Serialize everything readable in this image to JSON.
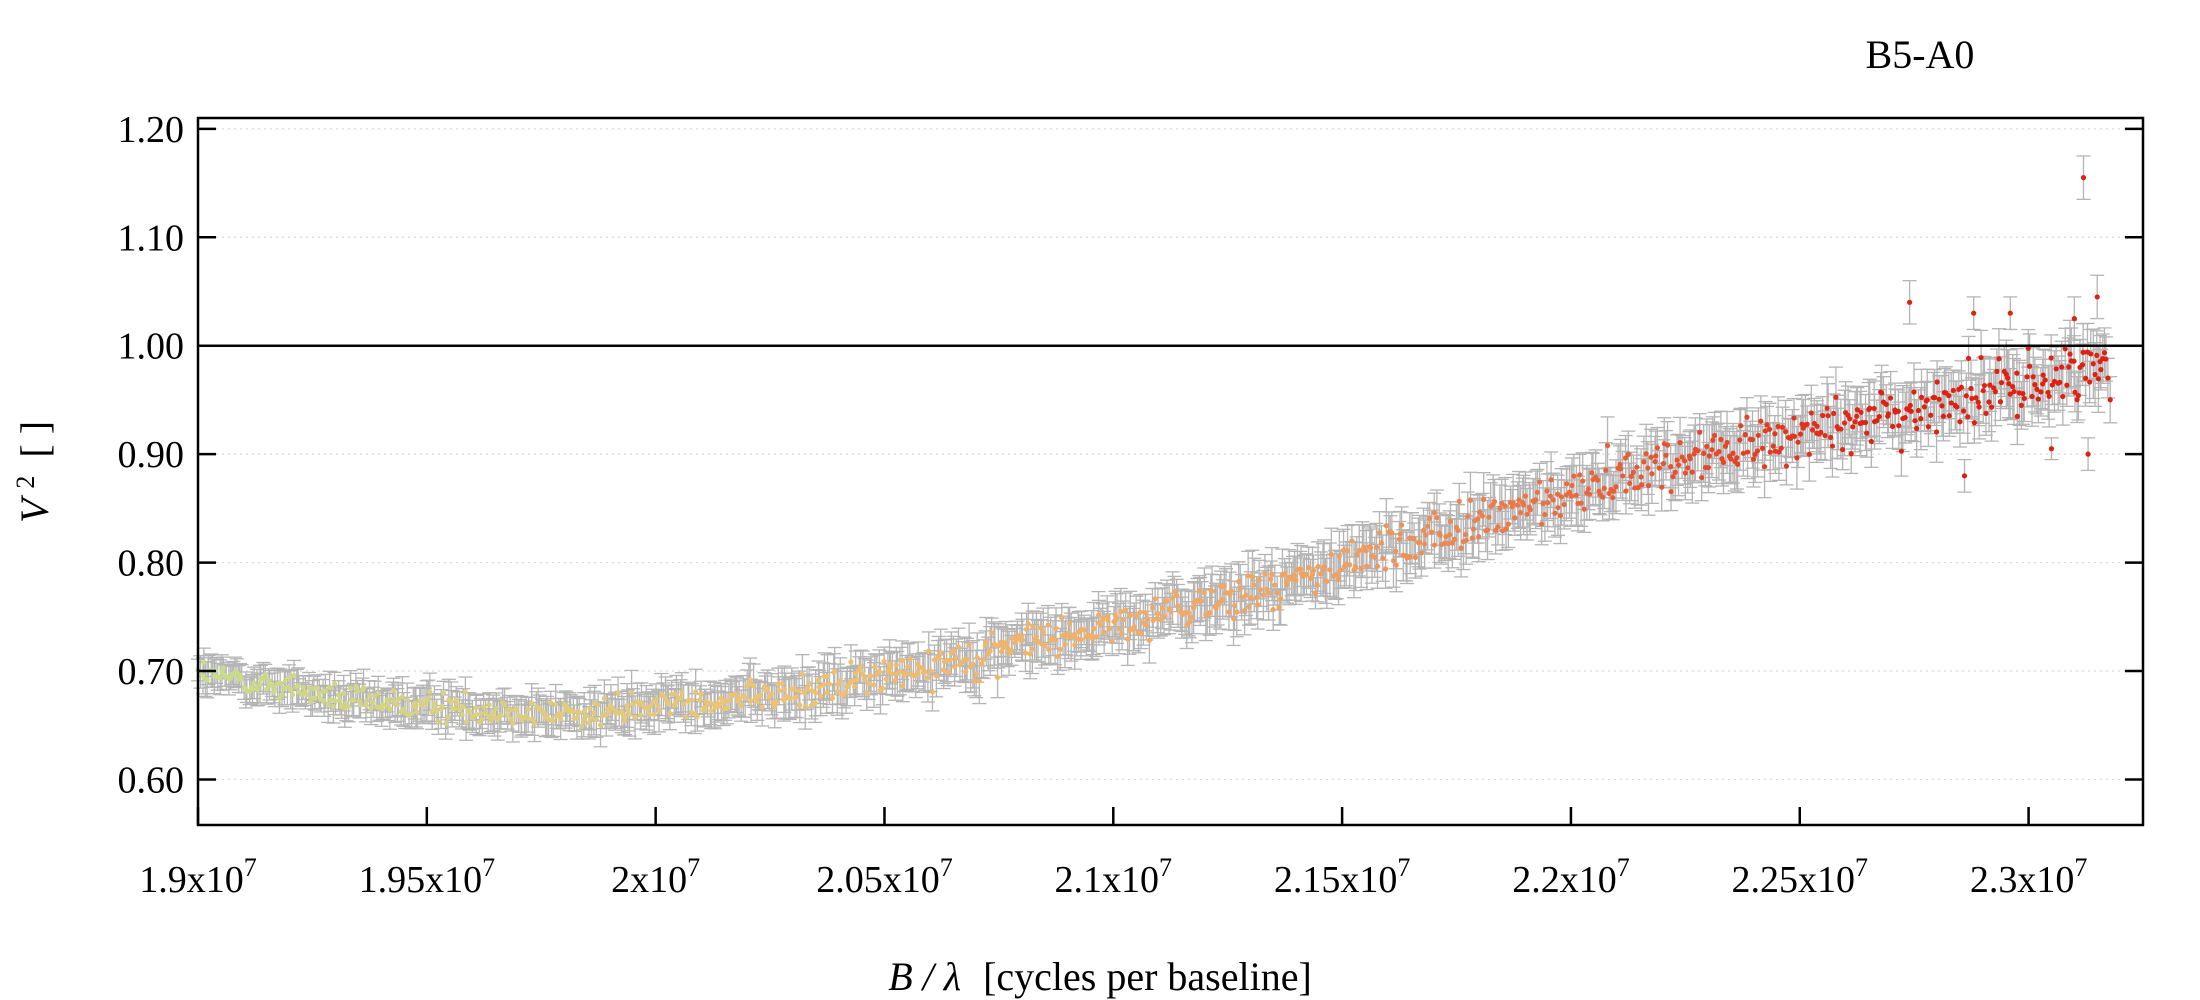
{
  "chart_data": {
    "type": "scatter",
    "title": "B5-A0",
    "xlabel": {
      "var": "B / λ",
      "unit": "[cycles per baseline]"
    },
    "ylabel": {
      "var": "V",
      "sup": "2",
      "unit": "[ ]"
    },
    "xlim": [
      19000000,
      23250000
    ],
    "ylim": [
      0.558,
      1.21
    ],
    "x_ticks": [
      {
        "value": 19000000,
        "mantissa": "1.9x10",
        "exp": "7"
      },
      {
        "value": 19500000,
        "mantissa": "1.95x10",
        "exp": "7"
      },
      {
        "value": 20000000,
        "mantissa": "2x10",
        "exp": "7"
      },
      {
        "value": 20500000,
        "mantissa": "2.05x10",
        "exp": "7"
      },
      {
        "value": 21000000,
        "mantissa": "2.1x10",
        "exp": "7"
      },
      {
        "value": 21500000,
        "mantissa": "2.15x10",
        "exp": "7"
      },
      {
        "value": 22000000,
        "mantissa": "2.2x10",
        "exp": "7"
      },
      {
        "value": 22500000,
        "mantissa": "2.25x10",
        "exp": "7"
      },
      {
        "value": 23000000,
        "mantissa": "2.3x10",
        "exp": "7"
      }
    ],
    "y_ticks": [
      {
        "value": 0.6,
        "label": "0.60"
      },
      {
        "value": 0.7,
        "label": "0.70"
      },
      {
        "value": 0.8,
        "label": "0.80"
      },
      {
        "value": 0.9,
        "label": "0.90"
      },
      {
        "value": 1.0,
        "label": "1.00"
      },
      {
        "value": 1.1,
        "label": "1.10"
      },
      {
        "value": 1.2,
        "label": "1.20"
      }
    ],
    "grid": "horizontal dotted",
    "reference_line": {
      "y": 1.0,
      "color": "#000000"
    },
    "color_gradient": {
      "start": "#c8dc8c",
      "mid1": "#f0c070",
      "mid2": "#f0a060",
      "end": "#e02010"
    },
    "error_bar_color": "#b4b4b4",
    "series": [
      {
        "profile_x": [
          19000000,
          19100000,
          19200000,
          19300000,
          19400000,
          19500000,
          19600000,
          19700000,
          19800000,
          19900000,
          20000000,
          20100000,
          20200000,
          20300000,
          20400000,
          20500000,
          20600000,
          20700000,
          20800000,
          20900000,
          21000000,
          21100000,
          21200000,
          21300000,
          21400000,
          21500000,
          21600000,
          21700000,
          21800000,
          21900000,
          22000000,
          22100000,
          22200000,
          22300000,
          22400000,
          22500000,
          22600000,
          22700000,
          22800000,
          22900000,
          23000000,
          23100000,
          23180000
        ],
        "profile_y": [
          0.7,
          0.69,
          0.685,
          0.675,
          0.67,
          0.668,
          0.665,
          0.662,
          0.66,
          0.663,
          0.668,
          0.672,
          0.675,
          0.68,
          0.688,
          0.695,
          0.705,
          0.715,
          0.725,
          0.733,
          0.742,
          0.752,
          0.762,
          0.772,
          0.785,
          0.8,
          0.812,
          0.825,
          0.838,
          0.85,
          0.865,
          0.88,
          0.89,
          0.9,
          0.91,
          0.92,
          0.93,
          0.937,
          0.943,
          0.955,
          0.965,
          0.975,
          0.985
        ],
        "points_count": 1100,
        "scatter_start": 0.018,
        "scatter_end": 0.045,
        "error_start": 0.013,
        "error_end": 0.025,
        "outliers": [
          {
            "x": 23120000,
            "y": 1.155,
            "err": 0.02
          },
          {
            "x": 22740000,
            "y": 1.04,
            "err": 0.02
          },
          {
            "x": 22880000,
            "y": 1.03,
            "err": 0.015
          },
          {
            "x": 22960000,
            "y": 1.03,
            "err": 0.015
          },
          {
            "x": 23100000,
            "y": 1.025,
            "err": 0.02
          },
          {
            "x": 23150000,
            "y": 1.045,
            "err": 0.02
          },
          {
            "x": 22860000,
            "y": 0.88,
            "err": 0.015
          },
          {
            "x": 23130000,
            "y": 0.9,
            "err": 0.015
          },
          {
            "x": 23050000,
            "y": 0.905,
            "err": 0.01
          }
        ]
      }
    ]
  }
}
